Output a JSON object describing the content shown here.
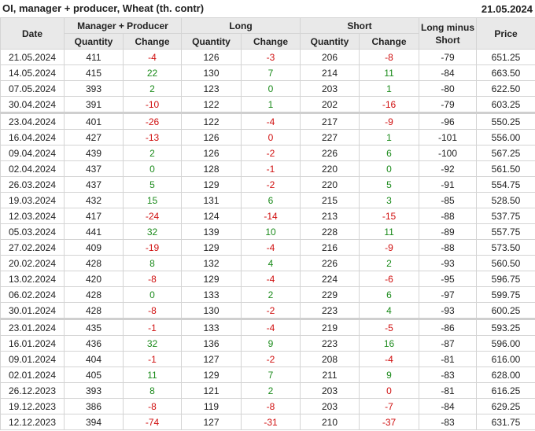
{
  "header": {
    "title": "OI, manager + producer, Wheat (th. contr)",
    "date": "21.05.2024"
  },
  "columns": {
    "date": "Date",
    "mp": "Manager + Producer",
    "long": "Long",
    "short": "Short",
    "lms": "Long minus Short",
    "price": "Price",
    "quantity": "Quantity",
    "change": "Change"
  },
  "colors": {
    "positive": "#1a8a1a",
    "negative": "#d01010",
    "header_bg": "#e9e9e9"
  },
  "rows": [
    {
      "date": "21.05.2024",
      "mp_q": "411",
      "mp_c": "-4",
      "mp_s": "neg",
      "l_q": "126",
      "l_c": "-3",
      "l_s": "neg",
      "s_q": "206",
      "s_c": "-8",
      "s_s": "neg",
      "lms": "-79",
      "price": "651.25"
    },
    {
      "date": "14.05.2024",
      "mp_q": "415",
      "mp_c": "22",
      "mp_s": "pos",
      "l_q": "130",
      "l_c": "7",
      "l_s": "pos",
      "s_q": "214",
      "s_c": "11",
      "s_s": "pos",
      "lms": "-84",
      "price": "663.50"
    },
    {
      "date": "07.05.2024",
      "mp_q": "393",
      "mp_c": "2",
      "mp_s": "pos",
      "l_q": "123",
      "l_c": "0",
      "l_s": "pos",
      "s_q": "203",
      "s_c": "1",
      "s_s": "pos",
      "lms": "-80",
      "price": "622.50"
    },
    {
      "date": "30.04.2024",
      "mp_q": "391",
      "mp_c": "-10",
      "mp_s": "neg",
      "l_q": "122",
      "l_c": "1",
      "l_s": "pos",
      "s_q": "202",
      "s_c": "-16",
      "s_s": "neg",
      "lms": "-79",
      "price": "603.25"
    },
    {
      "date": "23.04.2024",
      "mp_q": "401",
      "mp_c": "-26",
      "mp_s": "neg",
      "l_q": "122",
      "l_c": "-4",
      "l_s": "neg",
      "s_q": "217",
      "s_c": "-9",
      "s_s": "neg",
      "lms": "-96",
      "price": "550.25",
      "sep": true
    },
    {
      "date": "16.04.2024",
      "mp_q": "427",
      "mp_c": "-13",
      "mp_s": "neg",
      "l_q": "126",
      "l_c": "0",
      "l_s": "neg",
      "s_q": "227",
      "s_c": "1",
      "s_s": "pos",
      "lms": "-101",
      "price": "556.00"
    },
    {
      "date": "09.04.2024",
      "mp_q": "439",
      "mp_c": "2",
      "mp_s": "pos",
      "l_q": "126",
      "l_c": "-2",
      "l_s": "neg",
      "s_q": "226",
      "s_c": "6",
      "s_s": "pos",
      "lms": "-100",
      "price": "567.25"
    },
    {
      "date": "02.04.2024",
      "mp_q": "437",
      "mp_c": "0",
      "mp_s": "pos",
      "l_q": "128",
      "l_c": "-1",
      "l_s": "neg",
      "s_q": "220",
      "s_c": "0",
      "s_s": "pos",
      "lms": "-92",
      "price": "561.50"
    },
    {
      "date": "26.03.2024",
      "mp_q": "437",
      "mp_c": "5",
      "mp_s": "pos",
      "l_q": "129",
      "l_c": "-2",
      "l_s": "neg",
      "s_q": "220",
      "s_c": "5",
      "s_s": "pos",
      "lms": "-91",
      "price": "554.75"
    },
    {
      "date": "19.03.2024",
      "mp_q": "432",
      "mp_c": "15",
      "mp_s": "pos",
      "l_q": "131",
      "l_c": "6",
      "l_s": "pos",
      "s_q": "215",
      "s_c": "3",
      "s_s": "pos",
      "lms": "-85",
      "price": "528.50"
    },
    {
      "date": "12.03.2024",
      "mp_q": "417",
      "mp_c": "-24",
      "mp_s": "neg",
      "l_q": "124",
      "l_c": "-14",
      "l_s": "neg",
      "s_q": "213",
      "s_c": "-15",
      "s_s": "neg",
      "lms": "-88",
      "price": "537.75"
    },
    {
      "date": "05.03.2024",
      "mp_q": "441",
      "mp_c": "32",
      "mp_s": "pos",
      "l_q": "139",
      "l_c": "10",
      "l_s": "pos",
      "s_q": "228",
      "s_c": "11",
      "s_s": "pos",
      "lms": "-89",
      "price": "557.75"
    },
    {
      "date": "27.02.2024",
      "mp_q": "409",
      "mp_c": "-19",
      "mp_s": "neg",
      "l_q": "129",
      "l_c": "-4",
      "l_s": "neg",
      "s_q": "216",
      "s_c": "-9",
      "s_s": "neg",
      "lms": "-88",
      "price": "573.50"
    },
    {
      "date": "20.02.2024",
      "mp_q": "428",
      "mp_c": "8",
      "mp_s": "pos",
      "l_q": "132",
      "l_c": "4",
      "l_s": "pos",
      "s_q": "226",
      "s_c": "2",
      "s_s": "pos",
      "lms": "-93",
      "price": "560.50"
    },
    {
      "date": "13.02.2024",
      "mp_q": "420",
      "mp_c": "-8",
      "mp_s": "neg",
      "l_q": "129",
      "l_c": "-4",
      "l_s": "neg",
      "s_q": "224",
      "s_c": "-6",
      "s_s": "neg",
      "lms": "-95",
      "price": "596.75"
    },
    {
      "date": "06.02.2024",
      "mp_q": "428",
      "mp_c": "0",
      "mp_s": "pos",
      "l_q": "133",
      "l_c": "2",
      "l_s": "pos",
      "s_q": "229",
      "s_c": "6",
      "s_s": "pos",
      "lms": "-97",
      "price": "599.75"
    },
    {
      "date": "30.01.2024",
      "mp_q": "428",
      "mp_c": "-8",
      "mp_s": "neg",
      "l_q": "130",
      "l_c": "-2",
      "l_s": "neg",
      "s_q": "223",
      "s_c": "4",
      "s_s": "pos",
      "lms": "-93",
      "price": "600.25"
    },
    {
      "date": "23.01.2024",
      "mp_q": "435",
      "mp_c": "-1",
      "mp_s": "neg",
      "l_q": "133",
      "l_c": "-4",
      "l_s": "neg",
      "s_q": "219",
      "s_c": "-5",
      "s_s": "neg",
      "lms": "-86",
      "price": "593.25",
      "sep": true
    },
    {
      "date": "16.01.2024",
      "mp_q": "436",
      "mp_c": "32",
      "mp_s": "pos",
      "l_q": "136",
      "l_c": "9",
      "l_s": "pos",
      "s_q": "223",
      "s_c": "16",
      "s_s": "pos",
      "lms": "-87",
      "price": "596.00"
    },
    {
      "date": "09.01.2024",
      "mp_q": "404",
      "mp_c": "-1",
      "mp_s": "neg",
      "l_q": "127",
      "l_c": "-2",
      "l_s": "neg",
      "s_q": "208",
      "s_c": "-4",
      "s_s": "neg",
      "lms": "-81",
      "price": "616.00"
    },
    {
      "date": "02.01.2024",
      "mp_q": "405",
      "mp_c": "11",
      "mp_s": "pos",
      "l_q": "129",
      "l_c": "7",
      "l_s": "pos",
      "s_q": "211",
      "s_c": "9",
      "s_s": "pos",
      "lms": "-83",
      "price": "628.00"
    },
    {
      "date": "26.12.2023",
      "mp_q": "393",
      "mp_c": "8",
      "mp_s": "pos",
      "l_q": "121",
      "l_c": "2",
      "l_s": "pos",
      "s_q": "203",
      "s_c": "0",
      "s_s": "neg",
      "lms": "-81",
      "price": "616.25"
    },
    {
      "date": "19.12.2023",
      "mp_q": "386",
      "mp_c": "-8",
      "mp_s": "neg",
      "l_q": "119",
      "l_c": "-8",
      "l_s": "neg",
      "s_q": "203",
      "s_c": "-7",
      "s_s": "neg",
      "lms": "-84",
      "price": "629.25"
    },
    {
      "date": "12.12.2023",
      "mp_q": "394",
      "mp_c": "-74",
      "mp_s": "neg",
      "l_q": "127",
      "l_c": "-31",
      "l_s": "neg",
      "s_q": "210",
      "s_c": "-37",
      "s_s": "neg",
      "lms": "-83",
      "price": "631.75"
    }
  ]
}
